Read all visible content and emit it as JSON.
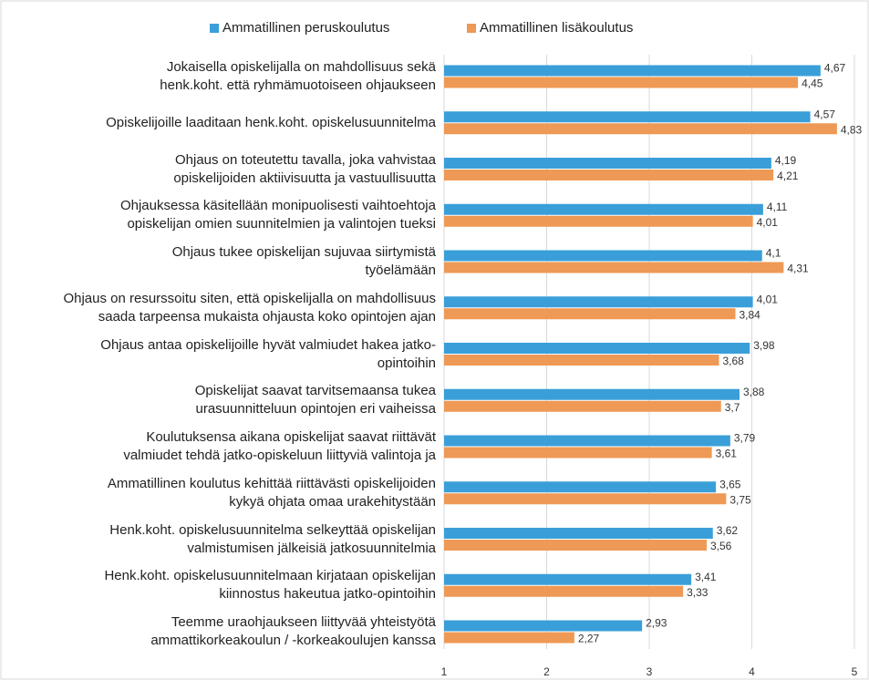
{
  "chart_data": {
    "type": "bar",
    "orientation": "horizontal",
    "categories": [
      "Jokaisella opiskelijalla on mahdollisuus sekä\nhenk.koht. että ryhmämuotoiseen ohjaukseen",
      "Opiskelijoille laaditaan henk.koht. opiskelusuunnitelma",
      "Ohjaus on toteutettu tavalla, joka vahvistaa\nopiskelijoiden aktiivisuutta ja vastuullisuutta",
      "Ohjauksessa käsitellään monipuolisesti vaihtoehtoja\nopiskelijan omien suunnitelmien ja valintojen tueksi",
      "Ohjaus tukee opiskelijan sujuvaa siirtymistä\ntyöelämään",
      "Ohjaus on resurssoitu siten, että opiskelijalla on mahdollisuus\nsaada tarpeensa mukaista ohjausta koko opintojen ajan",
      "Ohjaus antaa opiskelijoille hyvät valmiudet hakea jatko-\nopintoihin",
      "Opiskelijat saavat tarvitsemaansa tukea\nurasuunnitteluun opintojen eri vaiheissa",
      "Koulutuksensa aikana opiskelijat saavat riittävät\nvalmiudet tehdä jatko-opiskeluun liittyviä valintoja ja",
      "Ammatillinen koulutus kehittää riittävästi opiskelijoiden\nkykyä ohjata omaa urakehitystään",
      "Henk.koht. opiskelusuunnitelma selkeyttää opiskelijan\nvalmistumisen jälkeisiä jatkosuunnitelmia",
      "Henk.koht. opiskelusuunnitelmaan kirjataan opiskelijan\nkiinnostus hakeutua jatko-opintoihin",
      "Teemme uraohjaukseen liittyvää yhteistyötä\nammattikorkeakoulun / -korkeakoulujen kanssa"
    ],
    "series": [
      {
        "name": "Ammatillinen peruskoulutus",
        "color": "#3a9fd9",
        "values": [
          4.67,
          4.57,
          4.19,
          4.11,
          4.1,
          4.01,
          3.98,
          3.88,
          3.79,
          3.65,
          3.62,
          3.41,
          2.93
        ],
        "value_labels": [
          "4,67",
          "4,57",
          "4,19",
          "4,11",
          "4,1",
          "4,01",
          "3,98",
          "3,88",
          "3,79",
          "3,65",
          "3,62",
          "3,41",
          "2,93"
        ]
      },
      {
        "name": "Ammatillinen lisäkoulutus",
        "color": "#ee9955",
        "values": [
          4.45,
          4.83,
          4.21,
          4.01,
          4.31,
          3.84,
          3.68,
          3.7,
          3.61,
          3.75,
          3.56,
          3.33,
          2.27
        ],
        "value_labels": [
          "4,45",
          "4,83",
          "4,21",
          "4,01",
          "4,31",
          "3,84",
          "3,68",
          "3,7",
          "3,61",
          "3,75",
          "3,56",
          "3,33",
          "2,27"
        ]
      }
    ],
    "xlim": [
      1,
      5
    ],
    "xticks": [
      1,
      2,
      3,
      4,
      5
    ],
    "grid": true,
    "legend": "top"
  }
}
